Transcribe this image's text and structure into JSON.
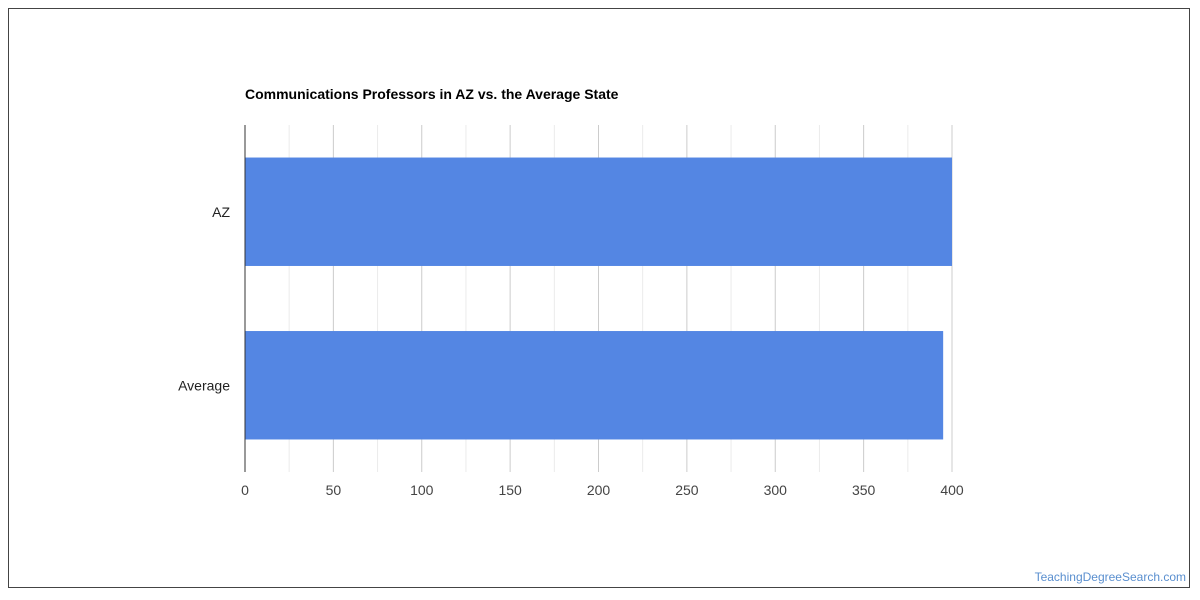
{
  "chart_data": {
    "type": "bar",
    "orientation": "horizontal",
    "title": "Communications Professors in AZ vs. the Average State",
    "categories": [
      "AZ",
      "Average"
    ],
    "values": [
      400,
      395
    ],
    "xlim": [
      0,
      400
    ],
    "xticks": [
      0,
      50,
      100,
      150,
      200,
      250,
      300,
      350,
      400
    ],
    "xlabel": "",
    "ylabel": "",
    "grid": true,
    "legend": "none"
  },
  "colors": {
    "bar": "#5486e3",
    "grid_major": "#cccccc",
    "grid_minor": "#ebebeb",
    "axis": "#333333",
    "watermark": "#5a8fcf"
  },
  "watermark": {
    "text": "TeachingDegreeSearch.com"
  }
}
